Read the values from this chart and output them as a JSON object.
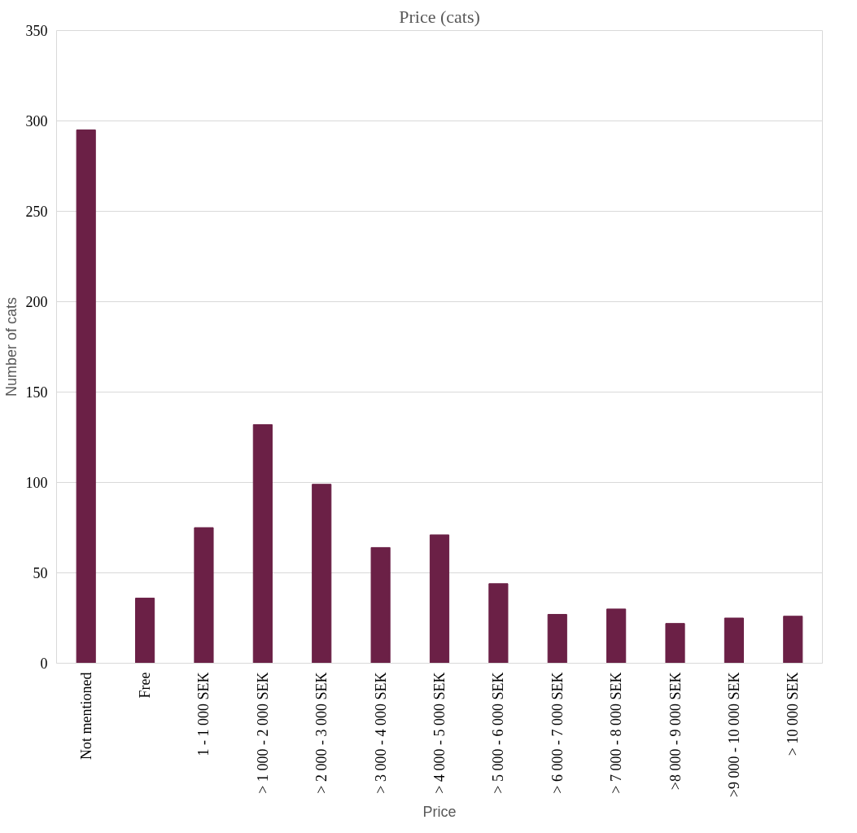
{
  "chart_data": {
    "type": "bar",
    "title": "Price (cats)",
    "xlabel": "Price",
    "ylabel": "Number of cats",
    "categories": [
      "Not mentioned",
      "Free",
      "1 - 1 000 SEK",
      "> 1 000 - 2 000 SEK",
      "> 2 000 - 3 000 SEK",
      "> 3 000 - 4 000 SEK",
      "> 4 000 - 5 000 SEK",
      "> 5 000 - 6 000 SEK",
      "> 6 000 - 7 000 SEK",
      "> 7 000 - 8 000 SEK",
      ">8 000 - 9 000 SEK",
      ">9 000 - 10 000 SEK",
      "> 10 000 SEK"
    ],
    "values": [
      295,
      36,
      75,
      132,
      99,
      64,
      71,
      44,
      27,
      30,
      22,
      25,
      26
    ],
    "color": "#6b2046",
    "ylim": [
      0,
      350
    ],
    "yticks": [
      0,
      50,
      100,
      150,
      200,
      250,
      300,
      350
    ],
    "grid": "y"
  }
}
